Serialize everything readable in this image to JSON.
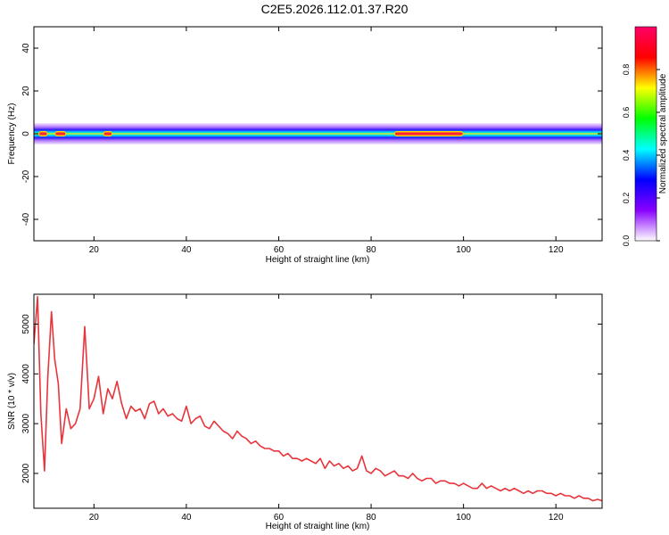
{
  "figure": {
    "title": "C2E5.2026.112.01.37.R20"
  },
  "chart_data": [
    {
      "type": "heatmap",
      "xlabel": "Height of straight line (km)",
      "ylabel": "Frequency (Hz)",
      "xlim": [
        7,
        130
      ],
      "ylim": [
        -50,
        50
      ],
      "xticks": [
        20,
        40,
        60,
        80,
        100,
        120
      ],
      "yticks": [
        -40,
        -20,
        0,
        20,
        40
      ],
      "band": {
        "center_hz": 0,
        "half_width_hz": 5,
        "hot_spots": [
          {
            "x_start": 8,
            "x_end": 10
          },
          {
            "x_start": 11.5,
            "x_end": 14
          },
          {
            "x_start": 22,
            "x_end": 24
          },
          {
            "x_start": 85,
            "x_end": 100
          }
        ]
      },
      "colorbar": {
        "label": "Normalized spectral amplitude",
        "ticks": [
          0.0,
          0.2,
          0.4,
          0.6,
          0.8
        ],
        "tick_labels": [
          "0.0",
          "0.2",
          "0.4",
          "0.6",
          "0.8"
        ],
        "range": [
          0,
          1
        ],
        "colors": [
          "#ffffff",
          "#8800ff",
          "#0000ff",
          "#00ffff",
          "#00ff00",
          "#ffff00",
          "#ff0000",
          "#ff0066"
        ]
      },
      "grid": false
    },
    {
      "type": "line",
      "xlabel": "Height of straight line (km)",
      "ylabel": "SNR (10 * v/v)",
      "xlim": [
        7,
        130
      ],
      "ylim": [
        1300,
        5600
      ],
      "xticks": [
        20,
        40,
        60,
        80,
        100,
        120
      ],
      "yticks": [
        2000,
        3000,
        4000,
        5000
      ],
      "grid": false,
      "series": [
        {
          "color": "#e8353b",
          "x": [
            7,
            7.8,
            8.5,
            9.3,
            10,
            10.8,
            11.5,
            12.3,
            13,
            14,
            15,
            16,
            17,
            18,
            19,
            20,
            21,
            22,
            23,
            24,
            25,
            26,
            27,
            28,
            29,
            30,
            31,
            32,
            33,
            34,
            35,
            36,
            37,
            38,
            39,
            40,
            41,
            42,
            43,
            44,
            45,
            46,
            47,
            48,
            49,
            50,
            51,
            52,
            53,
            54,
            55,
            56,
            57,
            58,
            59,
            60,
            61,
            62,
            63,
            64,
            65,
            66,
            67,
            68,
            69,
            70,
            71,
            72,
            73,
            74,
            75,
            76,
            77,
            78,
            79,
            80,
            81,
            82,
            83,
            84,
            85,
            86,
            87,
            88,
            89,
            90,
            91,
            92,
            93,
            94,
            95,
            96,
            97,
            98,
            99,
            100,
            101,
            102,
            103,
            104,
            105,
            106,
            107,
            108,
            109,
            110,
            111,
            112,
            113,
            114,
            115,
            116,
            117,
            118,
            119,
            120,
            121,
            122,
            123,
            124,
            125,
            126,
            127,
            128,
            129,
            130
          ],
          "values": [
            4600,
            5550,
            3200,
            2050,
            3900,
            5250,
            4300,
            3800,
            2600,
            3300,
            2900,
            3000,
            3300,
            4950,
            3300,
            3500,
            3950,
            3200,
            3700,
            3500,
            3850,
            3400,
            3100,
            3350,
            3250,
            3300,
            3100,
            3400,
            3450,
            3200,
            3300,
            3150,
            3200,
            3100,
            3050,
            3350,
            3000,
            3100,
            3150,
            2950,
            2900,
            3050,
            2950,
            2850,
            2800,
            2700,
            2850,
            2750,
            2700,
            2600,
            2650,
            2550,
            2500,
            2500,
            2450,
            2450,
            2350,
            2400,
            2300,
            2300,
            2250,
            2300,
            2250,
            2200,
            2300,
            2100,
            2250,
            2150,
            2200,
            2100,
            2150,
            2050,
            2100,
            2350,
            2050,
            2000,
            2100,
            2050,
            1950,
            2000,
            2050,
            1950,
            1950,
            1900,
            2000,
            1900,
            1850,
            1900,
            1900,
            1800,
            1850,
            1850,
            1800,
            1800,
            1750,
            1800,
            1750,
            1700,
            1700,
            1800,
            1700,
            1750,
            1700,
            1650,
            1700,
            1650,
            1700,
            1650,
            1600,
            1650,
            1600,
            1650,
            1650,
            1600,
            1600,
            1550,
            1600,
            1550,
            1550,
            1500,
            1550,
            1500,
            1500,
            1450,
            1480,
            1450
          ]
        }
      ]
    }
  ]
}
